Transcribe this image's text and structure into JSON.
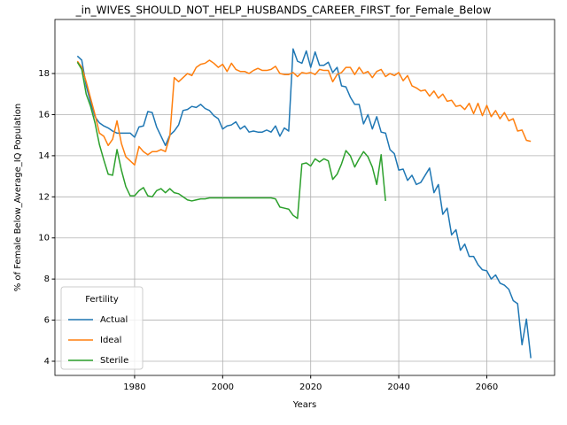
{
  "chart_data": {
    "type": "line",
    "title": "_in_WIVES_SHOULD_NOT_HELP_HUSBANDS_CAREER_FIRST_for_Female_Below",
    "x_label": "Years",
    "y_label": "% of Female Below_Average_IQ Population",
    "x": [
      1967,
      1968,
      1969,
      1970,
      1971,
      1972,
      1973,
      1974,
      1975,
      1976,
      1977,
      1978,
      1979,
      1980,
      1981,
      1982,
      1983,
      1984,
      1985,
      1986,
      1987,
      1988,
      1989,
      1990,
      1991,
      1992,
      1993,
      1994,
      1995,
      1996,
      1997,
      1998,
      1999,
      2000,
      2001,
      2002,
      2003,
      2004,
      2005,
      2006,
      2007,
      2008,
      2009,
      2010,
      2011,
      2012,
      2013,
      2014,
      2015,
      2016,
      2017,
      2018,
      2019,
      2020,
      2021,
      2022,
      2023,
      2024,
      2025,
      2026,
      2027,
      2028,
      2029,
      2030,
      2031,
      2032,
      2033,
      2034,
      2035,
      2036,
      2037,
      2038,
      2039,
      2040,
      2041,
      2042,
      2043,
      2044,
      2045,
      2046,
      2047,
      2048,
      2049,
      2050,
      2051,
      2052,
      2053,
      2054,
      2055,
      2056,
      2057,
      2058,
      2059,
      2060,
      2061,
      2062,
      2063,
      2064,
      2065,
      2066,
      2067,
      2068,
      2069,
      2070
    ],
    "series": [
      {
        "name": "Actual",
        "color": "#1f77b4",
        "values": [
          18.85,
          18.65,
          17.4,
          16.6,
          15.9,
          15.6,
          15.45,
          15.35,
          15.2,
          15.1,
          15.1,
          15.1,
          15.1,
          14.9,
          15.4,
          15.45,
          16.15,
          16.1,
          15.4,
          14.95,
          14.5,
          15.0,
          15.2,
          15.5,
          16.2,
          16.25,
          16.4,
          16.35,
          16.5,
          16.3,
          16.2,
          15.95,
          15.8,
          15.3,
          15.45,
          15.5,
          15.65,
          15.3,
          15.45,
          15.15,
          15.2,
          15.15,
          15.15,
          15.25,
          15.15,
          15.45,
          14.95,
          15.35,
          15.2,
          19.2,
          18.6,
          18.5,
          19.1,
          18.3,
          19.05,
          18.4,
          18.4,
          18.55,
          18.05,
          18.3,
          17.4,
          17.35,
          16.85,
          16.5,
          16.5,
          15.55,
          16.0,
          15.3,
          15.9,
          15.15,
          15.1,
          14.3,
          14.1,
          13.3,
          13.35,
          12.8,
          13.05,
          12.6,
          12.7,
          13.05,
          13.4,
          12.2,
          12.6,
          11.15,
          11.45,
          10.15,
          10.4,
          9.4,
          9.7,
          9.1,
          9.1,
          8.7,
          8.45,
          8.4,
          8.0,
          8.2,
          7.8,
          7.7,
          7.5,
          6.95,
          6.8,
          4.8,
          6.05,
          4.15
        ]
      },
      {
        "name": "Ideal",
        "color": "#ff7f0e",
        "values": [
          18.6,
          18.3,
          17.6,
          16.8,
          16.0,
          15.1,
          14.95,
          14.5,
          14.8,
          15.7,
          14.6,
          13.95,
          13.75,
          13.55,
          14.45,
          14.2,
          14.05,
          14.2,
          14.2,
          14.3,
          14.2,
          14.95,
          17.8,
          17.6,
          17.8,
          18.0,
          17.9,
          18.3,
          18.45,
          18.5,
          18.65,
          18.5,
          18.3,
          18.45,
          18.1,
          18.5,
          18.2,
          18.1,
          18.1,
          18.0,
          18.15,
          18.25,
          18.15,
          18.15,
          18.2,
          18.35,
          18.0,
          17.95,
          17.95,
          18.05,
          17.85,
          18.05,
          18.0,
          18.05,
          17.95,
          18.2,
          18.15,
          18.15,
          17.6,
          17.95,
          18.05,
          18.3,
          18.3,
          17.95,
          18.3,
          18.0,
          18.1,
          17.8,
          18.1,
          18.2,
          17.85,
          18.0,
          17.9,
          18.05,
          17.65,
          17.9,
          17.4,
          17.3,
          17.15,
          17.2,
          16.9,
          17.15,
          16.8,
          17.0,
          16.65,
          16.7,
          16.4,
          16.45,
          16.25,
          16.55,
          16.05,
          16.55,
          15.95,
          16.45,
          15.9,
          16.2,
          15.8,
          16.1,
          15.7,
          15.8,
          15.2,
          15.25,
          14.75,
          14.7
        ]
      },
      {
        "name": "Sterile",
        "color": "#2ca02c",
        "values": [
          18.55,
          18.2,
          17.0,
          16.4,
          15.6,
          14.55,
          13.8,
          13.1,
          13.05,
          14.3,
          13.3,
          12.5,
          12.05,
          12.05,
          12.3,
          12.45,
          12.05,
          12.0,
          12.3,
          12.4,
          12.2,
          12.4,
          12.2,
          12.15,
          12.0,
          11.85,
          11.8,
          11.85,
          11.9,
          11.9,
          11.95,
          11.95,
          11.95,
          11.95,
          11.95,
          11.95,
          11.95,
          11.95,
          11.95,
          11.95,
          11.95,
          11.95,
          11.95,
          11.95,
          11.95,
          11.9,
          11.5,
          11.45,
          11.4,
          11.1,
          10.95,
          13.6,
          13.65,
          13.5,
          13.85,
          13.7,
          13.85,
          13.75,
          12.85,
          13.1,
          13.6,
          14.25,
          14.0,
          13.45,
          13.85,
          14.2,
          13.95,
          13.45,
          12.6,
          14.05,
          11.8,
          null,
          null,
          null,
          null,
          null,
          null,
          null,
          null,
          null,
          null,
          null,
          null,
          null,
          null,
          null,
          null,
          null,
          null,
          null,
          null,
          null,
          null,
          null,
          null,
          null,
          null,
          null,
          null,
          null,
          null,
          null,
          null,
          null
        ]
      }
    ],
    "xlim": [
      1961.9,
      2075.4
    ],
    "ylim": [
      3.31,
      20.63
    ],
    "xticks": [
      1980,
      2000,
      2020,
      2040,
      2060
    ],
    "yticks": [
      4,
      6,
      8,
      10,
      12,
      14,
      16,
      18
    ],
    "grid": true,
    "legend_title": "Fertility",
    "legend_position": "lower left"
  }
}
